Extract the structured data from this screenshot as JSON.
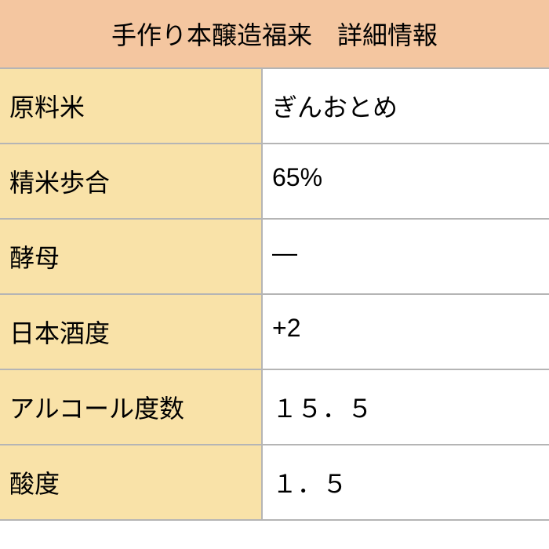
{
  "table": {
    "type": "table",
    "title": "手作り本醸造福来　詳細情報",
    "header_bg_color": "#f4c6a0",
    "label_bg_color": "#f9e2a8",
    "value_bg_color": "#ffffff",
    "border_color": "#b5b5b5",
    "text_color": "#000000",
    "font_size": 32,
    "label_width": 335,
    "value_width": 365,
    "rows": [
      {
        "label": "原料米",
        "value": "ぎんおとめ"
      },
      {
        "label": "精米歩合",
        "value": "65%"
      },
      {
        "label": "酵母",
        "value": "―"
      },
      {
        "label": "日本酒度",
        "value": "+2"
      },
      {
        "label": "アルコール度数",
        "value": "１５．５"
      },
      {
        "label": "酸度",
        "value": "１．５"
      }
    ]
  }
}
